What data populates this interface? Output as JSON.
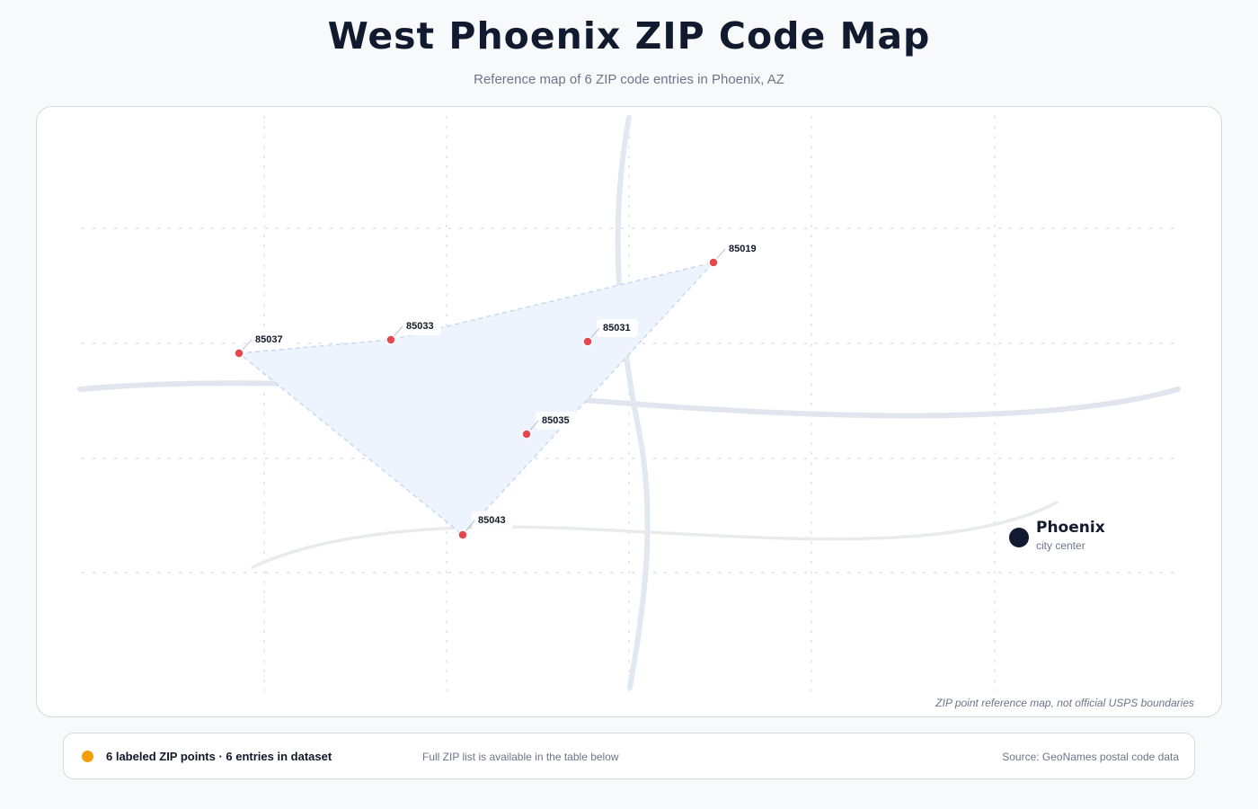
{
  "title": "West Phoenix ZIP Code Map",
  "subtitle": "Reference map of 6 ZIP code entries in Phoenix, AZ",
  "map": {
    "disclaimer": "ZIP point reference map, not official USPS boundaries",
    "city": {
      "name": "Phoenix",
      "sublabel": "city center",
      "color": "#111a2e"
    },
    "zip_marker_color": "#e5484d",
    "hull_fill": "#eef4fd",
    "zips": [
      {
        "zip": "85019"
      },
      {
        "zip": "85031"
      },
      {
        "zip": "85033"
      },
      {
        "zip": "85035"
      },
      {
        "zip": "85037"
      },
      {
        "zip": "85043"
      }
    ]
  },
  "footer": {
    "legend_color": "#f59e0b",
    "summary": "6 labeled ZIP points · 6 entries in dataset",
    "note": "Full ZIP list is available in the table below",
    "source": "Source: GeoNames postal code data"
  }
}
